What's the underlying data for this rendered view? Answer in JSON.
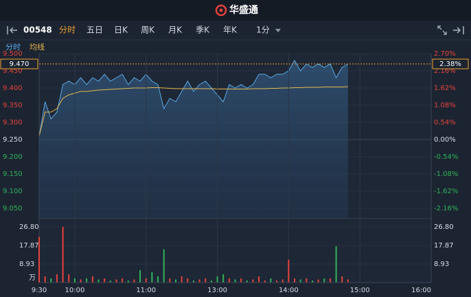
{
  "header": {
    "brand": "华盛通"
  },
  "toolbar": {
    "code": "00548",
    "tabs": [
      "分时",
      "五日",
      "日K",
      "周K",
      "月K",
      "季K",
      "年K",
      "1分"
    ]
  },
  "chart_data": [
    {
      "type": "line",
      "x": [
        0,
        5,
        10,
        15,
        20,
        25,
        30,
        35,
        40,
        45,
        50,
        55,
        60,
        65,
        70,
        75,
        80,
        85,
        90,
        95,
        100,
        105,
        110,
        115,
        120,
        125,
        130,
        135,
        140,
        145,
        150,
        155,
        160,
        165,
        170,
        175,
        180,
        185,
        190,
        195,
        200,
        205,
        210,
        215,
        220,
        225,
        230,
        235,
        240,
        245,
        250,
        255,
        260
      ],
      "xlim": [
        0,
        330
      ],
      "series": [
        {
          "name": "分时",
          "color": "#5aa9e6",
          "values": [
            9.26,
            9.36,
            9.31,
            9.33,
            9.41,
            9.42,
            9.41,
            9.43,
            9.41,
            9.43,
            9.42,
            9.44,
            9.42,
            9.43,
            9.44,
            9.41,
            9.43,
            9.42,
            9.44,
            9.42,
            9.41,
            9.34,
            9.37,
            9.36,
            9.39,
            9.42,
            9.39,
            9.41,
            9.42,
            9.4,
            9.38,
            9.36,
            9.41,
            9.4,
            9.41,
            9.4,
            9.41,
            9.44,
            9.44,
            9.43,
            9.44,
            9.44,
            9.45,
            9.48,
            9.45,
            9.47,
            9.46,
            9.47,
            9.46,
            9.47,
            9.43,
            9.46,
            9.47
          ]
        },
        {
          "name": "均线",
          "color": "#e8b84a",
          "values": [
            9.26,
            9.33,
            9.33,
            9.34,
            9.37,
            9.38,
            9.385,
            9.39,
            9.39,
            9.392,
            9.394,
            9.395,
            9.396,
            9.397,
            9.398,
            9.399,
            9.4,
            9.4,
            9.4,
            9.401,
            9.401,
            9.4,
            9.399,
            9.398,
            9.398,
            9.398,
            9.398,
            9.398,
            9.398,
            9.398,
            9.397,
            9.397,
            9.397,
            9.397,
            9.397,
            9.397,
            9.398,
            9.398,
            9.398,
            9.399,
            9.399,
            9.4,
            9.4,
            9.401,
            9.401,
            9.402,
            9.402,
            9.402,
            9.403,
            9.403,
            9.403,
            9.403,
            9.404
          ]
        }
      ],
      "ylim": [
        9.03,
        9.5
      ],
      "yticks": [
        {
          "value": 9.5,
          "label": "9.500"
        },
        {
          "value": 9.45,
          "label": "9.450"
        },
        {
          "value": 9.4,
          "label": "9.400"
        },
        {
          "value": 9.35,
          "label": "9.350"
        },
        {
          "value": 9.3,
          "label": "9.300"
        },
        {
          "value": 9.25,
          "label": "9.250"
        },
        {
          "value": 9.2,
          "label": "9.200"
        },
        {
          "value": 9.15,
          "label": "9.150"
        },
        {
          "value": 9.1,
          "label": "9.100"
        },
        {
          "value": 9.05,
          "label": "9.050"
        }
      ],
      "y2lim": [
        -2.38,
        2.7
      ],
      "y2ticks": [
        {
          "value": 2.7,
          "label": "2.70%"
        },
        {
          "value": 2.16,
          "label": "2.16%"
        },
        {
          "value": 1.62,
          "label": "1.62%"
        },
        {
          "value": 1.08,
          "label": "1.08%"
        },
        {
          "value": 0.54,
          "label": "0.54%"
        },
        {
          "value": 0,
          "label": "0.00%"
        },
        {
          "value": -0.54,
          "label": "-0.54%"
        },
        {
          "value": -1.08,
          "label": "-1.08%"
        },
        {
          "value": -1.62,
          "label": "-1.62%"
        },
        {
          "value": -2.16,
          "label": "-2.16%"
        }
      ],
      "current_price": {
        "value": 9.47,
        "label": "9.470"
      },
      "current_pct": {
        "value": 2.38,
        "label": "2.38%"
      },
      "grid": true
    },
    {
      "type": "bar",
      "x": [
        0,
        5,
        10,
        15,
        20,
        25,
        30,
        35,
        40,
        45,
        50,
        55,
        60,
        65,
        70,
        75,
        80,
        85,
        90,
        95,
        100,
        105,
        110,
        115,
        120,
        125,
        130,
        135,
        140,
        145,
        150,
        155,
        160,
        165,
        170,
        175,
        180,
        185,
        190,
        195,
        200,
        205,
        210,
        215,
        220,
        225,
        230,
        235,
        240,
        245,
        250,
        255,
        260
      ],
      "xlim": [
        0,
        330
      ],
      "values": [
        22,
        3,
        2,
        4,
        26.8,
        4,
        2,
        1.5,
        2,
        3,
        1.5,
        2,
        1,
        1.5,
        2,
        1,
        1.5,
        6,
        2,
        5,
        3,
        16,
        2,
        1.5,
        3,
        2,
        1,
        1.5,
        2,
        1,
        3,
        4,
        2,
        1.5,
        2,
        1,
        1.5,
        3,
        1,
        2,
        1,
        1.5,
        11,
        2,
        1.5,
        2,
        1,
        1.5,
        2,
        2,
        17.5,
        3,
        1.5
      ],
      "ylim": [
        0,
        26.8
      ],
      "yticks": [
        8.93,
        17.87,
        {
          "value": 26.8,
          "label": "26.80"
        }
      ],
      "unit": "万",
      "xticks": [
        {
          "value": 0,
          "label": "9:30"
        },
        {
          "value": 30,
          "label": "10:00"
        },
        {
          "value": 90,
          "label": "11:00"
        },
        {
          "value": 150,
          "label": "13:00"
        },
        {
          "value": 210,
          "label": "14:00"
        },
        {
          "value": 270,
          "label": "15:00"
        },
        {
          "value": 330,
          "label": "16:00"
        }
      ],
      "up_color": "#e8423c",
      "down_color": "#2fb35a"
    }
  ]
}
